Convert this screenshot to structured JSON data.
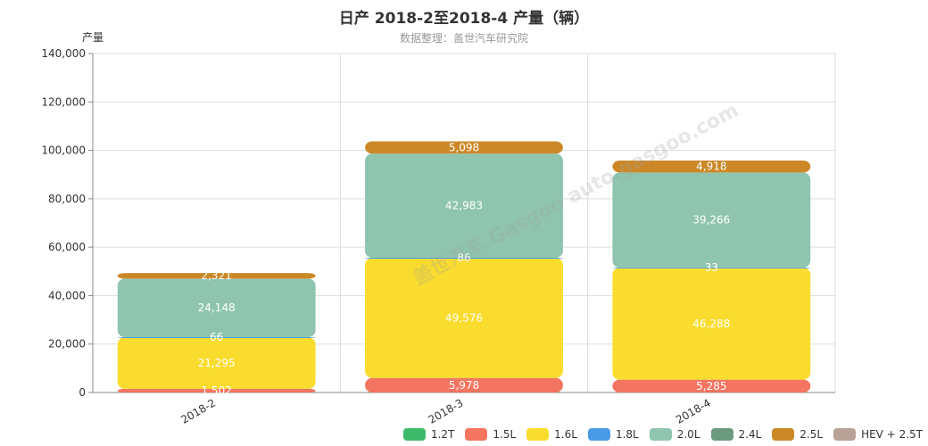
{
  "title": "日产 2018-2至2018-4 产量（辆）",
  "subtitle": "数据整理：盖世汽车研究院",
  "watermark": "盖世汽车 Gasgoo auto.gasgoo.com",
  "chart_data": {
    "type": "bar",
    "stacked": true,
    "ylabel": "产量",
    "ylim": [
      0,
      140000
    ],
    "yticks": [
      0,
      20000,
      40000,
      60000,
      80000,
      100000,
      120000,
      140000
    ],
    "ytick_labels": [
      "0",
      "20,000",
      "40,000",
      "60,000",
      "80,000",
      "100,000",
      "120,000",
      "140,000"
    ],
    "categories": [
      "2018-2",
      "2018-3",
      "2018-4"
    ],
    "series": [
      {
        "name": "1.2T",
        "color": "#3dbb6b",
        "values": [
          0,
          0,
          0
        ],
        "labels": [
          "",
          "",
          ""
        ]
      },
      {
        "name": "1.5L",
        "color": "#f47560",
        "values": [
          1502,
          5978,
          5285
        ],
        "labels": [
          "1,502",
          "5,978",
          "5,285"
        ]
      },
      {
        "name": "1.6L",
        "color": "#f9dc2e",
        "values": [
          21295,
          49576,
          46288
        ],
        "labels": [
          "21,295",
          "49,576",
          "46,288"
        ]
      },
      {
        "name": "1.8L",
        "color": "#4a9be8",
        "values": [
          66,
          86,
          33
        ],
        "labels": [
          "66",
          "86",
          "33"
        ]
      },
      {
        "name": "2.0L",
        "color": "#8fc5ae",
        "values": [
          24148,
          42983,
          39266
        ],
        "labels": [
          "24,148",
          "42,983",
          "39,266"
        ]
      },
      {
        "name": "2.4L",
        "color": "#6b9a7e",
        "values": [
          0,
          0,
          0
        ],
        "labels": [
          "",
          "",
          ""
        ]
      },
      {
        "name": "2.5L",
        "color": "#cc8827",
        "values": [
          2321,
          5098,
          4918
        ],
        "labels": [
          "2,321",
          "5,098",
          "4,918"
        ]
      },
      {
        "name": "HEV + 2.5T",
        "color": "#b8a196",
        "values": [
          0,
          0,
          0
        ],
        "labels": [
          "",
          "",
          ""
        ]
      }
    ],
    "legend_position": "bottom-right",
    "grid": true
  }
}
